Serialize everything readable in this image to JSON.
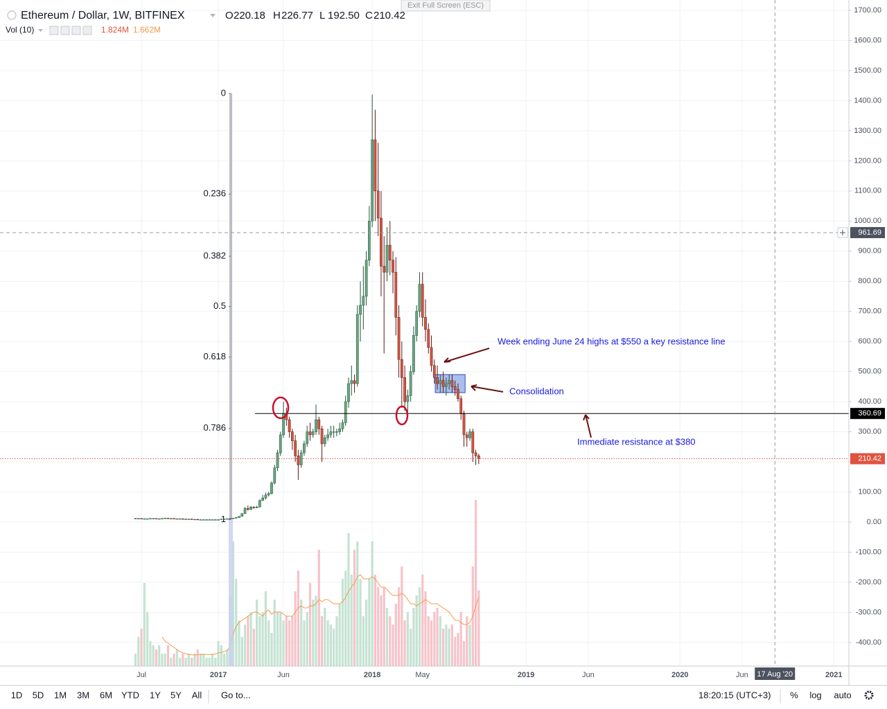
{
  "window": {
    "exit_fullscreen": "Exit Full Screen (ESC)"
  },
  "legend": {
    "symbol": "Ethereum / Dollar, 1W, BITFINEX",
    "ohlc_names": [
      "O",
      "H",
      "L",
      "C"
    ],
    "ohlc": [
      "220.18",
      "226.77",
      "192.50",
      "210.42"
    ]
  },
  "toolbar": {
    "ranges": [
      "1D",
      "5D",
      "1M",
      "3M",
      "6M",
      "YTD",
      "1Y",
      "5Y",
      "All"
    ],
    "goto": "Go to...",
    "clock": "18:20:15 (UTC+3)",
    "percent": "%",
    "log": "log",
    "auto": "auto"
  },
  "chart_data": {
    "type": "candlestick",
    "up_color": "#6ba583",
    "down_color": "#d75442",
    "x": [
      24,
      25,
      26,
      27,
      28,
      29,
      30,
      31,
      32,
      33,
      34,
      35,
      36,
      37,
      38,
      39,
      40,
      41,
      42,
      43,
      44,
      45,
      46,
      47,
      48,
      49,
      50,
      51,
      52,
      53,
      54,
      55,
      56,
      57,
      58,
      59,
      60,
      61,
      62,
      63,
      64,
      65,
      66,
      67,
      68,
      69,
      70,
      71,
      72,
      73,
      74,
      75,
      76,
      77,
      78,
      79,
      80,
      81,
      82,
      83,
      84,
      85,
      86,
      87,
      88,
      89,
      90,
      91,
      92,
      93,
      94,
      95,
      96,
      97,
      98,
      99,
      100,
      101,
      102,
      103,
      104,
      105,
      106,
      107,
      108,
      109,
      110,
      111,
      112,
      113,
      114,
      115,
      116,
      117,
      118,
      119,
      120,
      121,
      122,
      123,
      124,
      125,
      126,
      127,
      128,
      129,
      130,
      131,
      132,
      133,
      134,
      135,
      136,
      137,
      138,
      139,
      140
    ],
    "open": [
      12,
      12,
      12,
      11,
      11,
      11,
      12,
      12,
      11,
      11,
      12,
      13,
      12,
      12,
      11,
      11,
      11,
      10,
      10,
      10,
      9,
      9,
      8,
      8,
      8,
      8,
      8,
      8,
      8,
      8,
      10,
      10,
      11,
      12,
      13,
      15,
      19,
      28,
      45,
      42,
      50,
      48,
      50,
      72,
      80,
      90,
      95,
      130,
      180,
      230,
      290,
      360,
      340,
      300,
      270,
      220,
      190,
      230,
      260,
      300,
      290,
      300,
      340,
      310,
      260,
      280,
      290,
      300,
      300,
      300,
      310,
      330,
      400,
      460,
      470,
      460,
      690,
      720,
      750,
      870,
      1000,
      1270,
      1100,
      1010,
      850,
      830,
      920,
      870,
      830,
      680,
      540,
      480,
      400,
      420,
      500,
      620,
      700,
      790,
      680,
      640,
      580,
      520,
      480,
      460,
      470,
      450,
      460,
      470,
      450,
      440,
      410,
      360,
      290,
      280,
      300,
      230,
      220.18
    ],
    "high": [
      13,
      13,
      12,
      12,
      12,
      13,
      13,
      12,
      12,
      13,
      14,
      14,
      13,
      12,
      12,
      12,
      12,
      11,
      11,
      11,
      10,
      10,
      9,
      9,
      9,
      9,
      9,
      9,
      9,
      11,
      11,
      12,
      13,
      14,
      16,
      20,
      30,
      50,
      55,
      53,
      52,
      54,
      75,
      90,
      98,
      100,
      135,
      190,
      240,
      300,
      400,
      380,
      350,
      310,
      290,
      240,
      240,
      270,
      320,
      330,
      310,
      390,
      350,
      320,
      290,
      310,
      320,
      320,
      310,
      330,
      340,
      420,
      480,
      520,
      490,
      720,
      800,
      850,
      900,
      1050,
      1420,
      1370,
      1260,
      1100,
      950,
      980,
      1000,
      900,
      880,
      720,
      600,
      520,
      440,
      520,
      650,
      720,
      830,
      830,
      740,
      660,
      620,
      540,
      520,
      490,
      500,
      480,
      490,
      490,
      470,
      460,
      420,
      370,
      300,
      310,
      310,
      240,
      226.77
    ],
    "low": [
      11,
      11,
      10,
      10,
      10,
      10,
      11,
      10,
      10,
      10,
      11,
      11,
      11,
      10,
      10,
      10,
      9,
      9,
      9,
      8,
      8,
      7,
      7,
      7,
      7,
      7,
      7,
      7,
      7,
      8,
      9,
      9,
      10,
      11,
      12,
      14,
      18,
      27,
      38,
      40,
      44,
      46,
      49,
      70,
      75,
      85,
      92,
      125,
      170,
      220,
      280,
      320,
      280,
      240,
      200,
      140,
      180,
      220,
      250,
      270,
      280,
      290,
      290,
      200,
      250,
      270,
      280,
      280,
      285,
      290,
      300,
      320,
      380,
      420,
      430,
      450,
      600,
      640,
      720,
      850,
      980,
      1000,
      950,
      750,
      560,
      800,
      820,
      760,
      620,
      480,
      380,
      370,
      360,
      400,
      490,
      600,
      680,
      650,
      600,
      560,
      500,
      460,
      440,
      430,
      430,
      420,
      440,
      430,
      420,
      400,
      340,
      250,
      250,
      270,
      200,
      190,
      192.5
    ],
    "close": [
      12,
      12,
      11,
      11,
      11,
      12,
      12,
      11,
      11,
      12,
      13,
      12,
      12,
      11,
      11,
      11,
      10,
      10,
      10,
      9,
      9,
      8,
      8,
      8,
      8,
      8,
      8,
      8,
      8,
      10,
      10,
      11,
      12,
      13,
      15,
      19,
      28,
      45,
      42,
      50,
      48,
      50,
      72,
      80,
      90,
      95,
      130,
      180,
      230,
      290,
      360,
      340,
      300,
      270,
      220,
      190,
      230,
      260,
      300,
      290,
      300,
      340,
      310,
      260,
      280,
      290,
      300,
      300,
      300,
      310,
      330,
      400,
      460,
      470,
      460,
      690,
      720,
      750,
      870,
      1000,
      1270,
      1100,
      1010,
      850,
      830,
      920,
      870,
      830,
      680,
      540,
      480,
      400,
      420,
      500,
      620,
      700,
      790,
      680,
      640,
      580,
      520,
      480,
      460,
      470,
      450,
      460,
      470,
      450,
      440,
      410,
      360,
      290,
      280,
      300,
      230,
      220.18,
      210.42
    ],
    "volume": {
      "name": "Vol (10)",
      "value_label": "1.824M",
      "ma_value_label": "1.662M",
      "ma_color": "#f59a4a",
      "values": [
        0.3,
        0.7,
        0.9,
        2.0,
        1.3,
        0.6,
        0.5,
        0.4,
        0.5,
        0.3,
        0.3,
        0.5,
        0.2,
        0.3,
        0.4,
        0.2,
        0.3,
        0.2,
        0.3,
        0.2,
        0.3,
        0.4,
        0.3,
        0.3,
        0.2,
        0.2,
        0.3,
        0.2,
        0.6,
        0.5,
        0.3,
        0.4,
        1.7,
        3.0,
        2.1,
        1.1,
        0.7,
        1.0,
        1.2,
        1.3,
        0.9,
        1.6,
        1.2,
        1.3,
        1.8,
        1.1,
        0.8,
        1.6,
        1.3,
        1.3,
        1.1,
        1.2,
        1.1,
        1.2,
        1.8,
        2.3,
        1.6,
        1.1,
        1.3,
        2.0,
        1.6,
        1.7,
        2.8,
        1.2,
        1.4,
        1.1,
        1.0,
        0.9,
        1.2,
        1.5,
        2.1,
        2.3,
        3.2,
        2.2,
        2.8,
        3.0,
        2.1,
        1.2,
        1.6,
        2.1,
        3.0,
        2.2,
        1.9,
        1.7,
        1.9,
        1.4,
        1.2,
        1.0,
        1.5,
        1.9,
        2.4,
        1.1,
        1.3,
        0.9,
        1.4,
        1.7,
        1.9,
        2.2,
        1.8,
        1.2,
        1.1,
        1.3,
        1.4,
        1.2,
        0.9,
        1.0,
        0.9,
        1.0,
        0.7,
        0.8,
        1.3,
        0.6,
        1.2,
        1.0,
        2.4,
        4.0,
        1.824
      ],
      "ma_values": [
        null,
        null,
        null,
        null,
        null,
        null,
        null,
        null,
        null,
        0.7,
        0.6,
        0.55,
        0.5,
        0.45,
        0.4,
        0.35,
        0.32,
        0.3,
        0.28,
        0.27,
        0.27,
        0.27,
        0.28,
        0.28,
        0.28,
        0.28,
        0.28,
        0.29,
        0.32,
        0.33,
        0.35,
        0.37,
        0.5,
        0.78,
        0.95,
        1.05,
        1.1,
        1.15,
        1.2,
        1.25,
        1.3,
        1.3,
        1.25,
        1.2,
        1.3,
        1.35,
        1.25,
        1.3,
        1.3,
        1.3,
        1.25,
        1.2,
        1.2,
        1.2,
        1.3,
        1.4,
        1.45,
        1.4,
        1.4,
        1.45,
        1.45,
        1.5,
        1.6,
        1.55,
        1.6,
        1.6,
        1.55,
        1.5,
        1.5,
        1.5,
        1.55,
        1.65,
        1.8,
        1.9,
        2.0,
        2.15,
        2.2,
        2.1,
        2.1,
        2.1,
        2.15,
        2.1,
        2.0,
        1.9,
        1.9,
        1.85,
        1.75,
        1.7,
        1.7,
        1.7,
        1.75,
        1.7,
        1.6,
        1.5,
        1.5,
        1.45,
        1.5,
        1.55,
        1.6,
        1.55,
        1.5,
        1.5,
        1.5,
        1.45,
        1.4,
        1.35,
        1.3,
        1.2,
        1.1,
        1.1,
        1.05,
        1.0,
        1.0,
        1.05,
        1.2,
        1.45,
        1.662
      ]
    },
    "xlim": [
      -21.8,
      265.1
    ],
    "xticks": [
      {
        "value": 26,
        "label": "Jul"
      },
      {
        "value": 52,
        "label": "2017"
      },
      {
        "value": 74,
        "label": "Jun"
      },
      {
        "value": 104,
        "label": "2018"
      },
      {
        "value": 121,
        "label": "May"
      },
      {
        "value": 156,
        "label": "2019"
      },
      {
        "value": 177,
        "label": "Jun"
      },
      {
        "value": 208,
        "label": "2020"
      },
      {
        "value": 229,
        "label": "Jun"
      },
      {
        "value": 260,
        "label": "2021"
      }
    ],
    "ylim": [
      -478.5,
      1734.5
    ],
    "yticks": [
      {
        "value": -400,
        "label": "-400.00"
      },
      {
        "value": -300,
        "label": "-300.00"
      },
      {
        "value": -200,
        "label": "-200.00"
      },
      {
        "value": -100,
        "label": "-100.00"
      },
      {
        "value": 0,
        "label": "0.00"
      },
      {
        "value": 100,
        "label": "100.00"
      },
      {
        "value": 200,
        "label": "200.00"
      },
      {
        "value": 300,
        "label": "300.00"
      },
      {
        "value": 400,
        "label": "400.00"
      },
      {
        "value": 500,
        "label": "500.00"
      },
      {
        "value": 600,
        "label": "600.00"
      },
      {
        "value": 700,
        "label": "700.00"
      },
      {
        "value": 800,
        "label": "800.00"
      },
      {
        "value": 900,
        "label": "900.00"
      },
      {
        "value": 1000,
        "label": "1000.00"
      },
      {
        "value": 1100,
        "label": "1100.00"
      },
      {
        "value": 1200,
        "label": "1200.00"
      },
      {
        "value": 1300,
        "label": "1300.00"
      },
      {
        "value": 1400,
        "label": "1400.00"
      },
      {
        "value": 1500,
        "label": "1500.00"
      },
      {
        "value": 1600,
        "label": "1600.00"
      },
      {
        "value": 1700,
        "label": "1700.00"
      }
    ],
    "grid": true,
    "fibonacci": {
      "x": 56.2,
      "from": 1424,
      "to": 8,
      "levels": [
        0,
        0.236,
        0.382,
        0.5,
        0.618,
        0.786,
        1
      ]
    },
    "horizontal_lines": [
      {
        "value": 360.69,
        "start_x": 64.4,
        "color": "#000000",
        "style": "solid"
      },
      {
        "value": 210.42,
        "start_x": -21.8,
        "color": "#e0533f",
        "style": "dotted"
      }
    ],
    "crosshair": {
      "y": 961.69,
      "x": 240.1,
      "x_label": "17 Aug '20"
    },
    "consolidation_box": {
      "x": [
        125.3,
        135.4
      ],
      "y": [
        430,
        490
      ]
    },
    "annotations": [
      {
        "text": "Week ending June 24 highs at $550 a key resistance line"
      },
      {
        "text": "Consolidation"
      },
      {
        "text": "Immediate resistance at $380"
      }
    ]
  }
}
